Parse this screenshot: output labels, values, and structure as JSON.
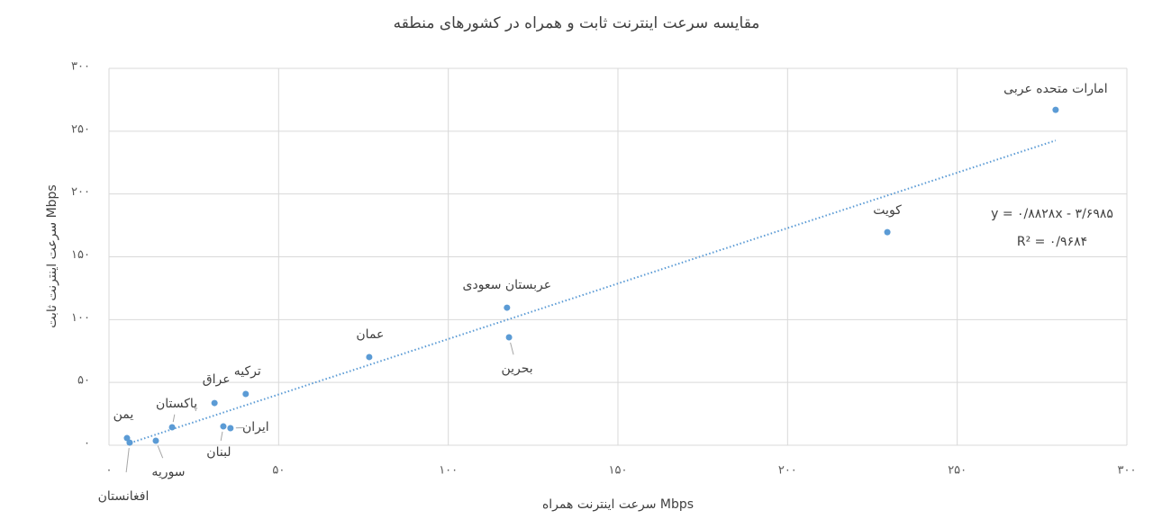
{
  "chart_data": {
    "type": "scatter",
    "title": "مقایسه سرعت اینترنت ثابت و همراه در کشورهای منطقه",
    "x_label": "سرعت اینترنت همراه Mbps",
    "y_label": "سرعت اینترنت ثابت Mbps",
    "series": [
      {
        "color": "#5b9bd5",
        "labels": [
          "امارات متحده عربی",
          "کویت",
          "عربستان سعودی",
          "بحرین",
          "عمان",
          "ترکیه",
          "عراق",
          "لبنان",
          "ایران",
          "پاکستان",
          "سوریه",
          "یمن",
          "افغانستان"
        ],
        "x": [
          279,
          229.4,
          117.3,
          117.9,
          76.7,
          40.3,
          31.1,
          33.7,
          35.8,
          18.6,
          13.8,
          5.3,
          6.1
        ],
        "values": [
          267,
          169.6,
          109.5,
          85.9,
          70.2,
          40.8,
          33.6,
          15,
          13.6,
          14.3,
          3.6,
          5.7,
          2.1
        ]
      }
    ],
    "trendline": {
      "slope": 0.8828,
      "intercept": -3.6985,
      "color": "#5b9bd5",
      "equation": "y = ۰/۸۸۲۸x - ۳/۶۹۸۵",
      "r_squared": "R² = ۰/۹۶۸۴"
    },
    "xlim": [
      0,
      300
    ],
    "ylim": [
      0,
      300
    ],
    "xticks": [
      {
        "value": 0,
        "label": "۰"
      },
      {
        "value": 50,
        "label": "۵۰"
      },
      {
        "value": 100,
        "label": "۱۰۰"
      },
      {
        "value": 150,
        "label": "۱۵۰"
      },
      {
        "value": 200,
        "label": "۲۰۰"
      },
      {
        "value": 250,
        "label": "۲۵۰"
      },
      {
        "value": 300,
        "label": "۳۰۰"
      }
    ],
    "yticks": [
      {
        "value": 0,
        "label": "۰"
      },
      {
        "value": 50,
        "label": "۵۰"
      },
      {
        "value": 100,
        "label": "۱۰۰"
      },
      {
        "value": 150,
        "label": "۱۵۰"
      },
      {
        "value": 200,
        "label": "۲۰۰"
      },
      {
        "value": 250,
        "label": "۲۵۰"
      },
      {
        "value": 300,
        "label": "۳۰۰"
      }
    ],
    "grid": true
  }
}
